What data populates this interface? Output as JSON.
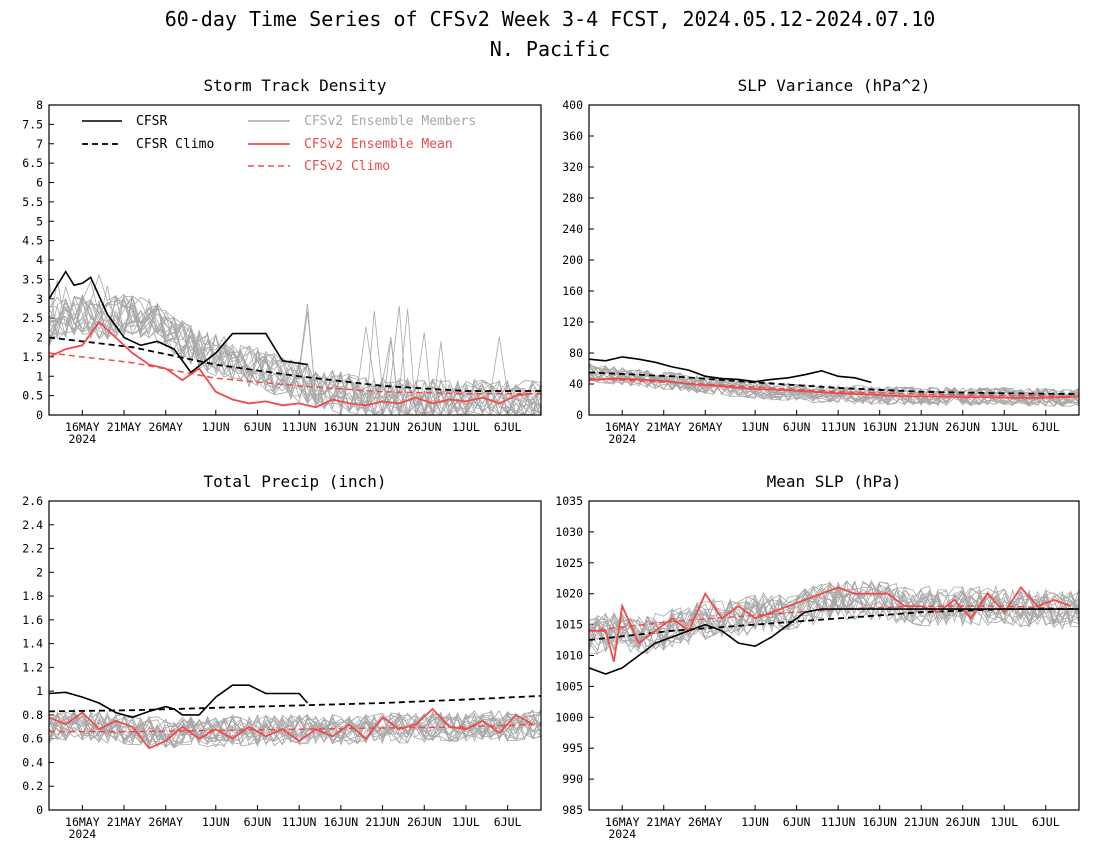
{
  "figure": {
    "title": "60-day Time Series of CFSv2 Week 3-4 FCST, 2024.05.12-2024.07.10",
    "subtitle": "N. Pacific"
  },
  "legend": {
    "cfsr": "CFSR",
    "cfsr_climo": "CFSR Climo",
    "members": "CFSv2 Ensemble Members",
    "ens_mean": "CFSv2 Ensemble Mean",
    "cfsv2_climo": "CFSv2 Climo"
  },
  "colors": {
    "cfsr": "#000000",
    "members": "#a8a8a8",
    "ens_mean": "#f04b4b",
    "cfsv2_climo": "#f04b4b"
  },
  "x_axis": {
    "tick_labels": [
      "16MAY",
      "21MAY",
      "26MAY",
      "1JUN",
      "6JUN",
      "11JUN",
      "16JUN",
      "21JUN",
      "26JUN",
      "1JUL",
      "6JUL"
    ],
    "tick_days": [
      4,
      9,
      14,
      20,
      25,
      30,
      35,
      40,
      45,
      50,
      55
    ],
    "year_label": "2024"
  },
  "chart_data": [
    {
      "type": "line",
      "title": "Storm Track Density",
      "xlim": [
        0,
        59
      ],
      "ylim": [
        0,
        8
      ],
      "yticks": [
        "0",
        "0.5",
        "1",
        "1.5",
        "2",
        "2.5",
        "3",
        "3.5",
        "4",
        "4.5",
        "5",
        "5.5",
        "6",
        "6.5",
        "7",
        "7.5",
        "8"
      ],
      "legend_position": "top",
      "series": [
        {
          "name": "CFSR",
          "role": "cfsr",
          "x": [
            0,
            2,
            3,
            4,
            5,
            7,
            9,
            11,
            13,
            15,
            17,
            20,
            22,
            26,
            28,
            31
          ],
          "values": [
            3.0,
            3.7,
            3.35,
            3.4,
            3.55,
            2.6,
            2.0,
            1.8,
            1.9,
            1.7,
            1.1,
            1.6,
            2.1,
            2.1,
            1.4,
            1.3
          ]
        },
        {
          "name": "CFSR Climo",
          "role": "cfsr_climo",
          "x": [
            0,
            10,
            20,
            30,
            40,
            50,
            59
          ],
          "values": [
            2.0,
            1.75,
            1.3,
            1.0,
            0.75,
            0.62,
            0.62
          ]
        },
        {
          "name": "CFSv2 Climo",
          "role": "cfsv2_climo",
          "x": [
            0,
            10,
            20,
            30,
            40,
            50,
            59
          ],
          "values": [
            1.6,
            1.35,
            0.95,
            0.75,
            0.6,
            0.55,
            0.55
          ]
        },
        {
          "name": "CFSv2 Ensemble Mean",
          "role": "ens_mean",
          "x": [
            0,
            2,
            4,
            6,
            8,
            10,
            12,
            14,
            16,
            18,
            20,
            22,
            24,
            26,
            28,
            30,
            32,
            34,
            36,
            38,
            40,
            42,
            44,
            46,
            48,
            50,
            52,
            54,
            56,
            58
          ],
          "values": [
            1.5,
            1.7,
            1.8,
            2.4,
            2.0,
            1.6,
            1.3,
            1.2,
            0.9,
            1.2,
            0.6,
            0.4,
            0.3,
            0.35,
            0.25,
            0.3,
            0.2,
            0.4,
            0.3,
            0.25,
            0.35,
            0.3,
            0.45,
            0.3,
            0.4,
            0.35,
            0.45,
            0.3,
            0.5,
            0.55
          ]
        },
        {
          "role": "members",
          "count": 20,
          "base": [
            2.3,
            2.6,
            2.4,
            2.6,
            2.5,
            2.1,
            1.7,
            1.5,
            1.3,
            1.1,
            0.9,
            0.7,
            0.55,
            0.45,
            0.4,
            0.4,
            0.38,
            0.38,
            0.36,
            0.36,
            0.35
          ],
          "spread": 0.55
        }
      ]
    },
    {
      "type": "line",
      "title": "SLP Variance (hPa^2)",
      "xlim": [
        0,
        59
      ],
      "ylim": [
        0,
        400
      ],
      "yticks": [
        "0",
        "40",
        "80",
        "120",
        "160",
        "200",
        "240",
        "280",
        "320",
        "360",
        "400"
      ],
      "series": [
        {
          "name": "CFSR",
          "role": "cfsr",
          "x": [
            0,
            2,
            4,
            6,
            8,
            10,
            12,
            14,
            16,
            18,
            20,
            22,
            24,
            26,
            28,
            30,
            32,
            34
          ],
          "values": [
            72,
            70,
            75,
            72,
            68,
            62,
            58,
            50,
            47,
            46,
            43,
            46,
            48,
            52,
            57,
            50,
            48,
            42
          ]
        },
        {
          "name": "CFSR Climo",
          "role": "cfsr_climo",
          "x": [
            0,
            10,
            20,
            30,
            40,
            50,
            59
          ],
          "values": [
            55,
            50,
            42,
            35,
            30,
            28,
            27
          ]
        },
        {
          "name": "CFSv2 Climo",
          "role": "cfsv2_climo",
          "x": [
            0,
            10,
            20,
            30,
            40,
            50,
            59
          ],
          "values": [
            47,
            42,
            36,
            30,
            27,
            25,
            24
          ]
        },
        {
          "name": "CFSv2 Ensemble Mean",
          "role": "ens_mean",
          "x": [
            0,
            3,
            6,
            9,
            12,
            15,
            18,
            21,
            24,
            27,
            30,
            33,
            36,
            39,
            42,
            45,
            48,
            51,
            54,
            57,
            59
          ],
          "values": [
            45,
            47,
            46,
            44,
            40,
            38,
            35,
            33,
            32,
            30,
            28,
            27,
            25,
            24,
            24,
            23,
            23,
            22,
            22,
            23,
            24
          ]
        },
        {
          "role": "members",
          "count": 20,
          "base": [
            55,
            52,
            48,
            45,
            42,
            38,
            35,
            32,
            30,
            28,
            27,
            26,
            25,
            25,
            24,
            24,
            24,
            24,
            23,
            23,
            23
          ],
          "spread": 12
        }
      ]
    },
    {
      "type": "line",
      "title": "Total Precip (inch)",
      "xlim": [
        0,
        59
      ],
      "ylim": [
        0,
        2.6
      ],
      "yticks": [
        "0",
        "0.2",
        "0.4",
        "0.6",
        "0.8",
        "1",
        "1.2",
        "1.4",
        "1.6",
        "1.8",
        "2",
        "2.2",
        "2.4",
        "2.6"
      ],
      "series": [
        {
          "name": "CFSR",
          "role": "cfsr",
          "x": [
            0,
            2,
            4,
            6,
            8,
            10,
            12,
            14,
            15,
            16,
            18,
            20,
            22,
            24,
            26,
            28,
            30,
            31
          ],
          "values": [
            0.98,
            0.99,
            0.95,
            0.9,
            0.82,
            0.78,
            0.83,
            0.87,
            0.85,
            0.8,
            0.8,
            0.95,
            1.05,
            1.05,
            0.98,
            0.98,
            0.98,
            0.9
          ]
        },
        {
          "name": "CFSR Climo",
          "role": "cfsr_climo",
          "x": [
            0,
            10,
            20,
            30,
            40,
            50,
            59
          ],
          "values": [
            0.83,
            0.84,
            0.86,
            0.88,
            0.9,
            0.93,
            0.96
          ]
        },
        {
          "name": "CFSv2 Climo",
          "role": "cfsv2_climo",
          "x": [
            0,
            10,
            20,
            30,
            40,
            50,
            59
          ],
          "values": [
            0.66,
            0.66,
            0.67,
            0.68,
            0.69,
            0.7,
            0.72
          ]
        },
        {
          "name": "CFSv2 Ensemble Mean",
          "role": "ens_mean",
          "x": [
            0,
            2,
            4,
            6,
            8,
            10,
            12,
            14,
            16,
            18,
            20,
            22,
            24,
            26,
            28,
            30,
            32,
            34,
            36,
            38,
            40,
            42,
            44,
            46,
            48,
            50,
            52,
            54,
            56,
            58
          ],
          "values": [
            0.78,
            0.72,
            0.82,
            0.68,
            0.75,
            0.7,
            0.52,
            0.58,
            0.7,
            0.6,
            0.68,
            0.6,
            0.7,
            0.62,
            0.68,
            0.58,
            0.68,
            0.62,
            0.72,
            0.6,
            0.78,
            0.68,
            0.72,
            0.85,
            0.7,
            0.68,
            0.75,
            0.65,
            0.8,
            0.72
          ]
        },
        {
          "role": "members",
          "count": 20,
          "base": [
            0.68,
            0.72,
            0.7,
            0.68,
            0.66,
            0.65,
            0.66,
            0.66,
            0.67,
            0.67,
            0.67,
            0.68,
            0.68,
            0.69,
            0.69,
            0.69,
            0.7,
            0.7,
            0.71,
            0.71,
            0.72
          ],
          "spread": 0.13
        }
      ]
    },
    {
      "type": "line",
      "title": "Mean SLP (hPa)",
      "xlim": [
        0,
        59
      ],
      "ylim": [
        985,
        1035
      ],
      "yticks": [
        "985",
        "990",
        "995",
        "1000",
        "1005",
        "1010",
        "1015",
        "1020",
        "1025",
        "1030",
        "1035"
      ],
      "series": [
        {
          "name": "CFSR",
          "role": "cfsr",
          "x": [
            0,
            2,
            4,
            6,
            8,
            10,
            12,
            14,
            16,
            18,
            20,
            22,
            24,
            26,
            28,
            30,
            32,
            34,
            36,
            38,
            40,
            42,
            44,
            46,
            48,
            50,
            52,
            54,
            56,
            58,
            59
          ],
          "values": [
            1008,
            1007,
            1008,
            1010,
            1012,
            1013,
            1014,
            1015,
            1014,
            1012,
            1011.5,
            1013,
            1015,
            1017,
            1017.5,
            1017.5,
            1017.5,
            1017.5,
            1017.5,
            1017.5,
            1017.5,
            1017.5,
            1017.5,
            1017.5,
            1017.5,
            1017.5,
            1017.5,
            1017.5,
            1017.5,
            1017.5,
            1017.5
          ]
        },
        {
          "name": "CFSR Climo",
          "role": "cfsr_climo",
          "x": [
            0,
            10,
            20,
            30,
            40,
            50,
            59
          ],
          "values": [
            1012.5,
            1014,
            1015,
            1016,
            1017,
            1017.5,
            1017.5
          ]
        },
        {
          "name": "CFSv2 Climo",
          "role": "cfsv2_climo",
          "x": [
            0,
            10,
            20,
            30,
            40,
            50,
            59
          ],
          "values": [
            1014,
            1015.5,
            1016.5,
            1017.5,
            1018,
            1018,
            1017.5
          ]
        },
        {
          "name": "CFSv2 Ensemble Mean",
          "role": "ens_mean",
          "x": [
            0,
            2,
            3,
            4,
            6,
            8,
            10,
            12,
            14,
            16,
            18,
            20,
            22,
            24,
            26,
            28,
            30,
            32,
            34,
            36,
            38,
            40,
            42,
            44,
            46,
            48,
            50,
            52,
            54,
            56,
            58
          ],
          "values": [
            1014,
            1014,
            1009,
            1018,
            1012,
            1014,
            1016,
            1014,
            1020,
            1016,
            1018,
            1016,
            1017,
            1018,
            1019,
            1020,
            1021,
            1020,
            1020,
            1020,
            1018,
            1018,
            1017,
            1019,
            1016,
            1020,
            1017,
            1021,
            1018,
            1019,
            1018
          ]
        },
        {
          "role": "members",
          "count": 20,
          "base": [
            1013,
            1014,
            1013,
            1014,
            1015,
            1016,
            1016,
            1017,
            1017,
            1018,
            1019,
            1019,
            1019,
            1018,
            1018,
            1018,
            1018,
            1018,
            1017.5,
            1017.5,
            1017.5
          ],
          "spread": 3.2
        }
      ]
    }
  ]
}
